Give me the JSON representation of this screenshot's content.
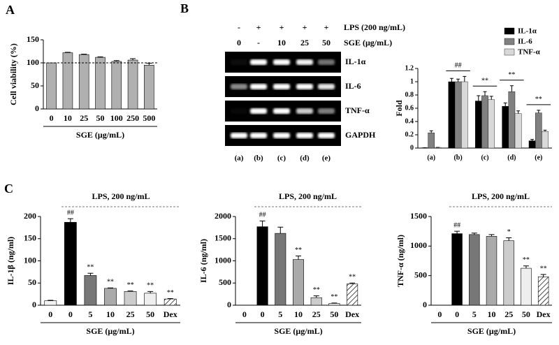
{
  "panel_labels": [
    "A",
    "B",
    "C"
  ],
  "gel": {
    "lps_label": "LPS (200 ng/mL)",
    "sge_label": "SGE (μg/mL)",
    "lps": [
      "-",
      "+",
      "+",
      "+",
      "+"
    ],
    "sge": [
      "0",
      "-",
      "10",
      "25",
      "50"
    ],
    "rows": [
      "IL-1α",
      "IL-6",
      "TNF-α",
      "GAPDH"
    ],
    "lanes": [
      "(a)",
      "(b)",
      "(c)",
      "(d)",
      "(e)"
    ]
  },
  "chart_data": [
    {
      "type": "bar",
      "ylabel": "Cell viability (%)",
      "xlabel": "SGE (μg/mL)",
      "categories": [
        "0",
        "10",
        "25",
        "50",
        "100",
        "250",
        "500"
      ],
      "values": [
        100,
        122,
        118,
        112,
        103,
        106,
        95
      ],
      "errors": [
        0,
        1,
        1,
        1,
        2,
        3,
        4
      ],
      "color": "#b0b0b0",
      "ylim": [
        0,
        150
      ],
      "yticks": [
        0,
        50,
        100,
        150
      ],
      "reference_line": 100
    },
    {
      "type": "bar",
      "ylabel": "Fold",
      "categories": [
        "(a)",
        "(b)",
        "(c)",
        "(d)",
        "(e)"
      ],
      "series": [
        {
          "name": "IL-1α",
          "color": "#000000",
          "values": [
            0.005,
            1.0,
            0.71,
            0.63,
            0.11
          ],
          "errors": [
            0,
            0.05,
            0.08,
            0.05,
            0.02
          ]
        },
        {
          "name": "IL-6",
          "color": "#808080",
          "values": [
            0.23,
            1.0,
            0.79,
            0.85,
            0.53
          ],
          "errors": [
            0.03,
            0.04,
            0.06,
            0.09,
            0.04
          ]
        },
        {
          "name": "TNF-α",
          "color": "#d9d9d9",
          "values": [
            0.01,
            1.0,
            0.73,
            0.52,
            0.25
          ],
          "errors": [
            0,
            0.08,
            0.05,
            0.04,
            0.02
          ]
        }
      ],
      "group_labels": [
        null,
        "##",
        "**",
        "**",
        "**"
      ],
      "ylim": [
        0,
        1.2
      ],
      "yticks": [
        0,
        0.2,
        0.4,
        0.6,
        0.8,
        1,
        1.2
      ],
      "legend": "upper right"
    },
    {
      "type": "bar",
      "header": "LPS, 200 ng/mL",
      "ylabel": "IL-1β (ng/ml)",
      "xlabel": "SGE (μg/mL)",
      "categories": [
        "0",
        "0",
        "5",
        "10",
        "25",
        "50",
        "Dex"
      ],
      "values": [
        10,
        187,
        67,
        38,
        31,
        27,
        14
      ],
      "errors": [
        1,
        8,
        5,
        1,
        1,
        4,
        1
      ],
      "colors": [
        "#f2f2f2",
        "#000000",
        "#777777",
        "#aaaaaa",
        "#cccccc",
        "#eeeeee",
        "#ffffff"
      ],
      "hatched": [
        false,
        false,
        false,
        false,
        false,
        false,
        true
      ],
      "bar_labels": [
        null,
        "##",
        "**",
        "**",
        "**",
        "**",
        "**"
      ],
      "ylim": [
        0,
        200
      ],
      "yticks": [
        0,
        50,
        100,
        150,
        200
      ]
    },
    {
      "type": "bar",
      "header": "LPS, 200 ng/mL",
      "ylabel": "IL-6 (ng/ml)",
      "xlabel": "SGE (μg/mL)",
      "categories": [
        "0",
        "0",
        "5",
        "10",
        "25",
        "50",
        "Dex"
      ],
      "values": [
        0,
        1770,
        1620,
        1030,
        170,
        40,
        480
      ],
      "errors": [
        0,
        130,
        140,
        80,
        40,
        10,
        20
      ],
      "colors": [
        "#f2f2f2",
        "#000000",
        "#777777",
        "#aaaaaa",
        "#cccccc",
        "#eeeeee",
        "#ffffff"
      ],
      "hatched": [
        false,
        false,
        false,
        false,
        false,
        false,
        true
      ],
      "bar_labels": [
        null,
        "##",
        null,
        "**",
        "**",
        "**",
        "**"
      ],
      "ylim": [
        0,
        2000
      ],
      "yticks": [
        0,
        500,
        1000,
        1500,
        2000
      ]
    },
    {
      "type": "bar",
      "header": "LPS, 200 ng/mL",
      "ylabel": "TNF-α (ng/ml)",
      "xlabel": "SGE (μg/mL)",
      "categories": [
        "0",
        "0",
        "5",
        "10",
        "25",
        "50",
        "Dex"
      ],
      "values": [
        0,
        1210,
        1195,
        1165,
        1090,
        625,
        480
      ],
      "errors": [
        0,
        40,
        25,
        30,
        50,
        40,
        40
      ],
      "colors": [
        "#f2f2f2",
        "#000000",
        "#777777",
        "#aaaaaa",
        "#cccccc",
        "#eeeeee",
        "#ffffff"
      ],
      "hatched": [
        false,
        false,
        false,
        false,
        false,
        false,
        true
      ],
      "bar_labels": [
        null,
        "##",
        null,
        null,
        "*",
        "**",
        "**"
      ],
      "ylim": [
        0,
        1500
      ],
      "yticks": [
        0,
        500,
        1000,
        1500
      ]
    }
  ]
}
